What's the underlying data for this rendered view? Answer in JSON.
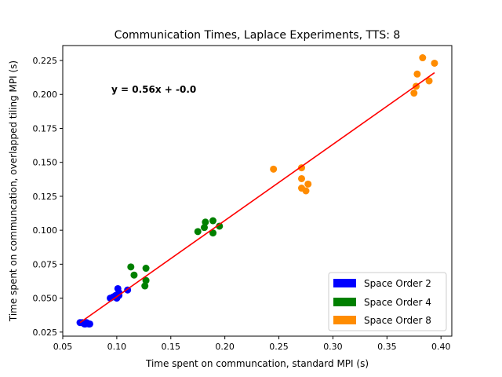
{
  "chart_data": {
    "type": "scatter",
    "title": "Communication Times, Laplace Experiments, TTS: 8",
    "xlabel": "Time spent on communcation, standard MPI (s)",
    "ylabel": "Time spent on communcation, overlapped tiling MPI (s)",
    "xlim": [
      0.05,
      0.41
    ],
    "ylim": [
      0.022,
      0.236
    ],
    "xticks": [
      "0.05",
      "0.10",
      "0.15",
      "0.20",
      "0.25",
      "0.30",
      "0.35",
      "0.40"
    ],
    "yticks": [
      "0.025",
      "0.050",
      "0.075",
      "0.100",
      "0.125",
      "0.150",
      "0.175",
      "0.200",
      "0.225"
    ],
    "xtick_values": [
      0.05,
      0.1,
      0.15,
      0.2,
      0.25,
      0.3,
      0.35,
      0.4
    ],
    "ytick_values": [
      0.025,
      0.05,
      0.075,
      0.1,
      0.125,
      0.15,
      0.175,
      0.2,
      0.225
    ],
    "annotation": "y = 0.56x + -0.0",
    "legend_position": "bottom-right",
    "grid": false,
    "series": [
      {
        "name": "Space Order 2",
        "color": "#0000ff",
        "points": [
          [
            0.066,
            0.032
          ],
          [
            0.068,
            0.032
          ],
          [
            0.07,
            0.031
          ],
          [
            0.071,
            0.031
          ],
          [
            0.072,
            0.032
          ],
          [
            0.074,
            0.031
          ],
          [
            0.075,
            0.031
          ],
          [
            0.094,
            0.05
          ],
          [
            0.097,
            0.051
          ],
          [
            0.099,
            0.052
          ],
          [
            0.1,
            0.05
          ],
          [
            0.101,
            0.057
          ],
          [
            0.102,
            0.054
          ],
          [
            0.102,
            0.052
          ],
          [
            0.11,
            0.056
          ]
        ]
      },
      {
        "name": "Space Order 4",
        "color": "#008000",
        "points": [
          [
            0.113,
            0.073
          ],
          [
            0.116,
            0.067
          ],
          [
            0.126,
            0.059
          ],
          [
            0.127,
            0.063
          ],
          [
            0.127,
            0.072
          ],
          [
            0.175,
            0.099
          ],
          [
            0.181,
            0.102
          ],
          [
            0.182,
            0.106
          ],
          [
            0.189,
            0.098
          ],
          [
            0.189,
            0.107
          ],
          [
            0.195,
            0.103
          ]
        ]
      },
      {
        "name": "Space Order 8",
        "color": "#ff8c00",
        "points": [
          [
            0.245,
            0.145
          ],
          [
            0.271,
            0.146
          ],
          [
            0.271,
            0.138
          ],
          [
            0.271,
            0.131
          ],
          [
            0.275,
            0.129
          ],
          [
            0.277,
            0.134
          ],
          [
            0.375,
            0.201
          ],
          [
            0.377,
            0.206
          ],
          [
            0.378,
            0.215
          ],
          [
            0.383,
            0.227
          ],
          [
            0.389,
            0.21
          ],
          [
            0.394,
            0.223
          ]
        ]
      }
    ],
    "fit_line": {
      "color": "#ff0000",
      "x": [
        0.066,
        0.394
      ],
      "y": [
        0.032,
        0.216
      ]
    }
  }
}
